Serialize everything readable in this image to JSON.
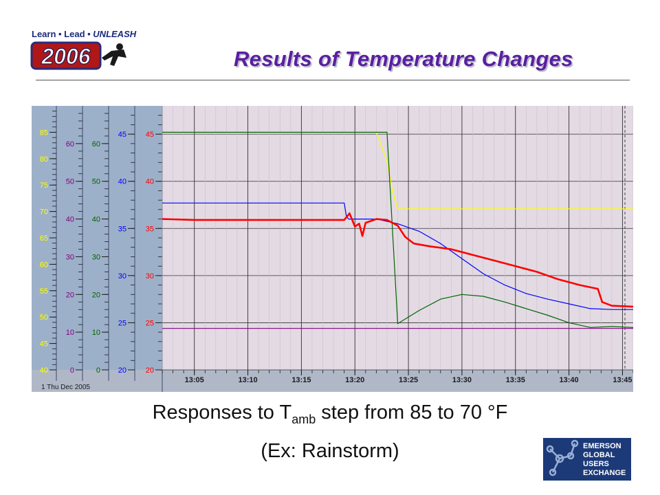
{
  "logo": {
    "tagline_prefix": "Learn • Lead • ",
    "tagline_emphasis": "UNLEASH",
    "year": "2006"
  },
  "slide": {
    "title": "Results of Temperature Changes",
    "caption_main": "Responses to T",
    "caption_sub": "amb",
    "caption_rest": " step from 85 to 70 °F",
    "caption2": "(Ex: Rainstorm)"
  },
  "partner_logo": {
    "lines": [
      "Emerson",
      "Global",
      "Users",
      "Exchange"
    ]
  },
  "chart_data": {
    "type": "line",
    "date_label": "1 Thu Dec 2005",
    "x_ticks": [
      "13:05",
      "13:10",
      "13:15",
      "13:20",
      "13:25",
      "13:30",
      "13:35",
      "13:40",
      "13:45"
    ],
    "x_range": [
      "13:02",
      "13:46"
    ],
    "grid": true,
    "axes": [
      {
        "color": "#ffff00",
        "range": [
          40,
          90
        ],
        "ticks": [
          40,
          45,
          50,
          55,
          60,
          65,
          70,
          75,
          80,
          85
        ]
      },
      {
        "color": "#800080",
        "range": [
          0,
          70
        ],
        "ticks": [
          0,
          10,
          20,
          30,
          40,
          50,
          60
        ]
      },
      {
        "color": "#006400",
        "range": [
          0,
          70
        ],
        "ticks": [
          0,
          10,
          20,
          30,
          40,
          50,
          60
        ]
      },
      {
        "color": "#0000ff",
        "range": [
          20,
          48
        ],
        "ticks": [
          20,
          25,
          30,
          35,
          40,
          45
        ]
      },
      {
        "color": "#ff0000",
        "range": [
          20,
          48
        ],
        "ticks": [
          20,
          25,
          30,
          35,
          40,
          45
        ]
      }
    ],
    "series": [
      {
        "color": "#ffff00",
        "axis": 0,
        "x": [
          "13:02",
          "13:22",
          "13:23",
          "13:23.5",
          "13:24",
          "13:46"
        ],
        "y": [
          85,
          85,
          79.5,
          74,
          70.5,
          70.5
        ]
      },
      {
        "color": "#006400",
        "axis": 3,
        "x": [
          "13:02",
          "13:19.5",
          "13:19.7",
          "13:20",
          "13:22",
          "13:23",
          "13:24",
          "13:26",
          "13:28",
          "13:30",
          "13:32",
          "13:34",
          "13:36",
          "13:38",
          "13:40",
          "13:42",
          "13:44",
          "13:46"
        ],
        "y": [
          45.2,
          45.2,
          45.2,
          45.2,
          45.2,
          45.2,
          24.9,
          26.3,
          27.5,
          28,
          27.8,
          27.2,
          26.5,
          25.8,
          25,
          24.5,
          24.6,
          24.5
        ]
      },
      {
        "color": "#0000ff",
        "axis": 3,
        "x": [
          "13:02",
          "13:19",
          "13:19.2",
          "13:19.4",
          "13:20",
          "13:22",
          "13:24",
          "13:26",
          "13:28",
          "13:30",
          "13:32",
          "13:34",
          "13:36",
          "13:38",
          "13:40",
          "13:42",
          "13:44",
          "13:46"
        ],
        "y": [
          37.7,
          37.7,
          36.3,
          36,
          36,
          36,
          35.5,
          34.7,
          33.4,
          31.8,
          30.2,
          29,
          28.1,
          27.5,
          27,
          26.5,
          26.4,
          26.4
        ]
      },
      {
        "color": "#ff0000",
        "axis": 4,
        "x": [
          "13:02",
          "13:05",
          "13:19",
          "13:19.5",
          "13:20",
          "13:20.4",
          "13:20.7",
          "13:21",
          "13:22",
          "13:23",
          "13:24",
          "13:24.7",
          "13:25.5",
          "13:27",
          "13:29",
          "13:31",
          "13:33",
          "13:35",
          "13:37",
          "13:39",
          "13:41",
          "13:42.7",
          "13:43.1",
          "13:44",
          "13:46"
        ],
        "y": [
          36,
          35.9,
          35.9,
          36.6,
          35.2,
          35.5,
          34.2,
          35.6,
          36,
          35.9,
          35.3,
          34.1,
          33.4,
          33.1,
          32.8,
          32.2,
          31.6,
          31,
          30.4,
          29.6,
          29,
          28.6,
          27.2,
          26.8,
          26.7
        ]
      },
      {
        "color": "#800080",
        "axis": 3,
        "x": [
          "13:02",
          "13:46"
        ],
        "y": [
          24.4,
          24.4
        ]
      }
    ]
  }
}
